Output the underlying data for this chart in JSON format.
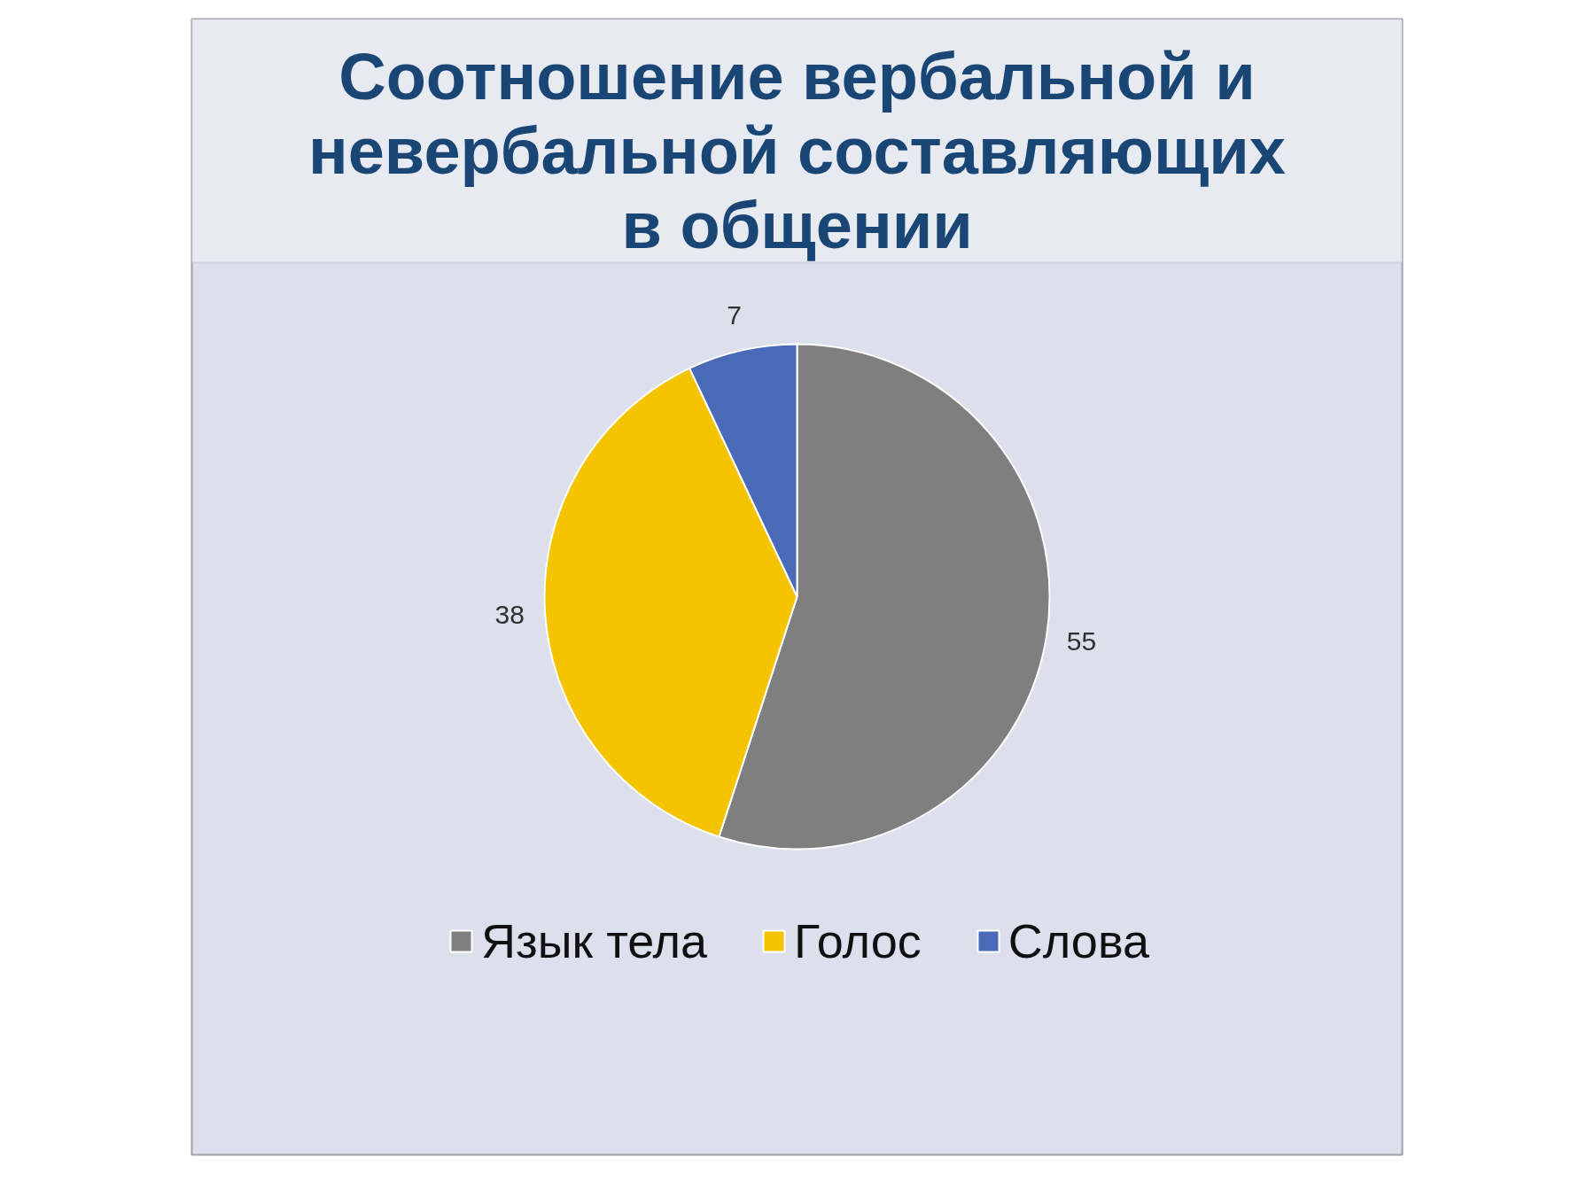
{
  "chart_data": {
    "type": "pie",
    "title": "Соотношение вербальной и невербальной составляющих в общении",
    "categories": [
      "Язык тела",
      "Голос",
      "Слова"
    ],
    "values": [
      55,
      38,
      7
    ],
    "colors": [
      "#7f7f7f",
      "#f5c400",
      "#4a6ab8"
    ],
    "data_labels": true,
    "legend": "bottom"
  }
}
